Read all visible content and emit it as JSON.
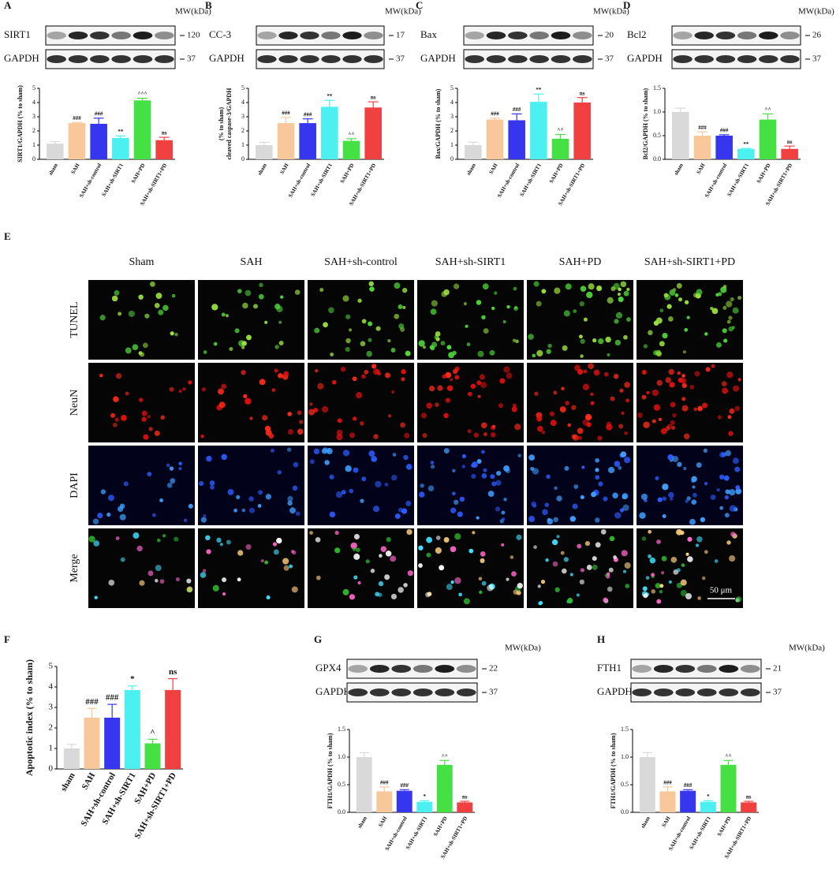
{
  "chart_data": [
    {
      "type": "bar",
      "panel": "A",
      "ylabel": [
        "SIRT1/GAPDH (% to sham)"
      ],
      "categories": [
        "sham",
        "SAH",
        "SAH+sh-control",
        "SAH+sh-SIRT1",
        "SAH+PD",
        "SAH+sh-SIRT1+PD"
      ],
      "values": [
        1.1,
        2.55,
        2.5,
        1.5,
        4.15,
        1.35
      ],
      "errors": [
        0.15,
        0.05,
        0.4,
        0.15,
        0.15,
        0.2
      ],
      "annotations": [
        null,
        "###",
        "###",
        "**",
        "^^^",
        "ns"
      ],
      "colors": [
        "#d9d9d9",
        "#f8c89a",
        "#3636ee",
        "#4cf0f0",
        "#44e044",
        "#f04040"
      ],
      "ylim": [
        0,
        5
      ],
      "yticks": [
        0,
        1,
        2,
        3,
        4,
        5
      ]
    },
    {
      "type": "bar",
      "panel": "B",
      "ylabel": [
        "cleaved caspase-3/GAPDH",
        "(% to sham)"
      ],
      "categories": [
        "sham",
        "SAH",
        "SAH+sh-control",
        "SAH+sh-SIRT1",
        "SAH+PD",
        "SAH+sh-SIRT1+PD"
      ],
      "values": [
        1.0,
        2.55,
        2.55,
        3.7,
        1.3,
        3.65
      ],
      "errors": [
        0.2,
        0.4,
        0.3,
        0.45,
        0.15,
        0.4
      ],
      "annotations": [
        null,
        "###",
        "###",
        "**",
        "^^",
        "ns"
      ],
      "colors": [
        "#d9d9d9",
        "#f8c89a",
        "#3636ee",
        "#4cf0f0",
        "#44e044",
        "#f04040"
      ],
      "ylim": [
        0,
        5
      ],
      "yticks": [
        0,
        1,
        2,
        3,
        4,
        5
      ]
    },
    {
      "type": "bar",
      "panel": "C",
      "ylabel": [
        "Bax/GAPDH (% to sham)"
      ],
      "categories": [
        "sham",
        "SAH",
        "SAH+sh-control",
        "SAH+sh-SIRT1",
        "SAH+PD",
        "SAH+sh-SIRT1+PD"
      ],
      "values": [
        1.0,
        2.8,
        2.75,
        4.05,
        1.45,
        4.0
      ],
      "errors": [
        0.2,
        0.1,
        0.45,
        0.55,
        0.3,
        0.35
      ],
      "annotations": [
        null,
        "###",
        "###",
        "**",
        "^^",
        "ns"
      ],
      "colors": [
        "#d9d9d9",
        "#f8c89a",
        "#3636ee",
        "#4cf0f0",
        "#44e044",
        "#f04040"
      ],
      "ylim": [
        0,
        5
      ],
      "yticks": [
        0,
        1,
        2,
        3,
        4,
        5
      ]
    },
    {
      "type": "bar",
      "panel": "D",
      "ylabel": [
        "Bcl2/GAPDH (% to sham)"
      ],
      "categories": [
        "sham",
        "SAH",
        "SAH+sh-control",
        "SAH+sh-SIRT1",
        "SAH+PD",
        "SAH+sh-SIRT1+PD"
      ],
      "values": [
        1.0,
        0.5,
        0.5,
        0.22,
        0.84,
        0.22
      ],
      "errors": [
        0.08,
        0.08,
        0.02,
        0.01,
        0.12,
        0.06
      ],
      "annotations": [
        null,
        "###",
        "###",
        "**",
        "^^",
        "ns"
      ],
      "colors": [
        "#d9d9d9",
        "#f8c89a",
        "#3636ee",
        "#4cf0f0",
        "#44e044",
        "#f04040"
      ],
      "ylim": [
        0,
        1.5
      ],
      "yticks": [
        {
          "value": 0,
          "label": "0.0"
        },
        0.5,
        {
          "value": 1,
          "label": "1.0"
        },
        1.5
      ]
    },
    {
      "type": "bar",
      "panel": "F",
      "ylabel": [
        "Apoptotic index (% to sham)"
      ],
      "categories": [
        "sham",
        "SAH",
        "SAH+sh-control",
        "SAH+sh-SIRT1",
        "SAH+PD",
        "SAH+sh-SIRT1+PD"
      ],
      "values": [
        1.0,
        2.5,
        2.5,
        3.85,
        1.25,
        3.85
      ],
      "errors": [
        0.2,
        0.45,
        0.65,
        0.2,
        0.2,
        0.55
      ],
      "annotations": [
        null,
        "###",
        "###",
        "*",
        "^",
        "ns"
      ],
      "colors": [
        "#d9d9d9",
        "#f8c89a",
        "#3636ee",
        "#4cf0f0",
        "#44e044",
        "#f04040"
      ],
      "ylim": [
        0,
        5
      ],
      "yticks": [
        0,
        1,
        2,
        3,
        4,
        5
      ]
    },
    {
      "type": "bar",
      "panel": "G",
      "ylabel": [
        "FTH1/GAPDH (% to sham)"
      ],
      "categories": [
        "sham",
        "SAH",
        "SAH+sh-control",
        "SAH+sh-SIRT1",
        "SAH+PD",
        "SAH+sh-SIRT1+PD"
      ],
      "values": [
        1.0,
        0.38,
        0.39,
        0.19,
        0.86,
        0.18
      ],
      "errors": [
        0.08,
        0.08,
        0.02,
        0.02,
        0.08,
        0.02
      ],
      "annotations": [
        null,
        "###",
        "###",
        "*",
        "^^",
        "ns"
      ],
      "colors": [
        "#d9d9d9",
        "#f8c89a",
        "#3636ee",
        "#4cf0f0",
        "#44e044",
        "#f04040"
      ],
      "ylim": [
        0,
        1.5
      ],
      "yticks": [
        {
          "value": 0,
          "label": "0.0"
        },
        0.5,
        {
          "value": 1,
          "label": "1.0"
        },
        1.5
      ]
    },
    {
      "type": "bar",
      "panel": "H",
      "ylabel": [
        "FTH1/GAPDH (% to sham)"
      ],
      "categories": [
        "sham",
        "SAH",
        "SAH+sh-control",
        "SAH+sh-SIRT1",
        "SAH+PD",
        "SAH+sh-SIRT1+PD"
      ],
      "values": [
        1.0,
        0.38,
        0.39,
        0.19,
        0.86,
        0.18
      ],
      "errors": [
        0.08,
        0.08,
        0.02,
        0.02,
        0.08,
        0.02
      ],
      "annotations": [
        null,
        "###",
        "###",
        "*",
        "^^",
        "ns"
      ],
      "colors": [
        "#d9d9d9",
        "#f8c89a",
        "#3636ee",
        "#4cf0f0",
        "#44e044",
        "#f04040"
      ],
      "ylim": [
        0,
        1.5
      ],
      "yticks": [
        {
          "value": 0,
          "label": "0.0"
        },
        0.5,
        {
          "value": 1,
          "label": "1.0"
        },
        1.5
      ]
    }
  ],
  "blots": [
    {
      "mw_label": "MW(kDa)",
      "rows": [
        {
          "name": "SIRT1",
          "mw": 120
        },
        {
          "name": "GAPDH",
          "mw": 37
        }
      ]
    },
    {
      "mw_label": "MW(kDa)",
      "rows": [
        {
          "name": "CC-3",
          "mw": 17
        },
        {
          "name": "GAPDH",
          "mw": 37
        }
      ]
    },
    {
      "mw_label": "MW(kDa)",
      "rows": [
        {
          "name": "Bax",
          "mw": 20
        },
        {
          "name": "GAPDH",
          "mw": 37
        }
      ]
    },
    {
      "mw_label": "MW(kDa)",
      "rows": [
        {
          "name": "Bcl2",
          "mw": 26
        },
        {
          "name": "GAPDH",
          "mw": 37
        }
      ]
    },
    {
      "mw_label": "MW(kDa)",
      "rows": [
        {
          "name": "GPX4",
          "mw": 22
        },
        {
          "name": "GAPDH",
          "mw": 37
        }
      ]
    },
    {
      "mw_label": "MW(kDa)",
      "rows": [
        {
          "name": "FTH1",
          "mw": 21
        },
        {
          "name": "GAPDH",
          "mw": 37
        }
      ]
    }
  ],
  "images": {
    "panel": "E",
    "columns": [
      "Sham",
      "SAH",
      "SAH+sh-control",
      "SAH+sh-SIRT1",
      "SAH+PD",
      "SAH+sh-SIRT1+PD"
    ],
    "rows": [
      "TUNEL",
      "NeuN",
      "DAPI",
      "Merge"
    ],
    "scale_bar": "50 μm"
  }
}
